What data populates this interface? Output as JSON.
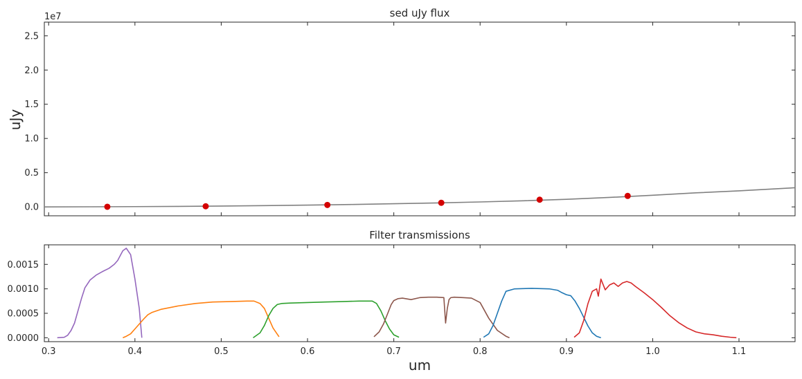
{
  "chart_data": [
    {
      "type": "line",
      "title": "sed uJy flux",
      "xlabel": "",
      "ylabel": "uJy",
      "offset_text": "1e7",
      "xlim": [
        0.295,
        1.165
      ],
      "ylim": [
        -1300000,
        27000000
      ],
      "x_ticks": [
        0.3,
        0.4,
        0.5,
        0.6,
        0.7,
        0.8,
        0.9,
        1.0,
        1.1
      ],
      "y_ticks": [
        0,
        5000000,
        10000000,
        15000000,
        20000000,
        25000000
      ],
      "y_tick_labels": [
        "0.0",
        "0.5",
        "1.0",
        "1.5",
        "2.0",
        "2.5"
      ],
      "grid": false,
      "colors": {
        "sed_line": "#808080",
        "points": "#d40000"
      },
      "sed_line": {
        "x": [
          0.295,
          0.35,
          0.4,
          0.45,
          0.5,
          0.55,
          0.6,
          0.65,
          0.7,
          0.75,
          0.8,
          0.85,
          0.9,
          0.95,
          1.0,
          1.05,
          1.1,
          1.165
        ],
        "y": [
          0,
          15000,
          40000,
          70000,
          120000,
          180000,
          260000,
          350000,
          460000,
          580000,
          720000,
          890000,
          1110000,
          1380000,
          1700000,
          2050000,
          2350000,
          2800000
        ]
      },
      "points": {
        "x": [
          0.368,
          0.482,
          0.623,
          0.755,
          0.869,
          0.971
        ],
        "y": [
          20000,
          90000,
          280000,
          600000,
          1050000,
          1600000
        ]
      }
    },
    {
      "type": "line",
      "title": "Filter transmissions",
      "xlabel": "um",
      "ylabel": "",
      "xlim": [
        0.295,
        1.165
      ],
      "ylim": [
        -8e-05,
        0.0019
      ],
      "x_ticks": [
        0.3,
        0.4,
        0.5,
        0.6,
        0.7,
        0.8,
        0.9,
        1.0,
        1.1
      ],
      "x_tick_labels": [
        "0.3",
        "0.4",
        "0.5",
        "0.6",
        "0.7",
        "0.8",
        "0.9",
        "1.0",
        "1.1"
      ],
      "y_ticks": [
        0,
        0.0005,
        0.001,
        0.0015
      ],
      "y_tick_labels": [
        "0.0000",
        "0.0005",
        "0.0010",
        "0.0015"
      ],
      "grid": false,
      "series": [
        {
          "color": "#9467bd",
          "x": [
            0.31,
            0.318,
            0.322,
            0.326,
            0.33,
            0.334,
            0.338,
            0.342,
            0.348,
            0.355,
            0.362,
            0.37,
            0.376,
            0.38,
            0.383,
            0.386,
            0.39,
            0.395,
            0.4,
            0.405,
            0.408
          ],
          "y": [
            0,
            1e-05,
            5e-05,
            0.00015,
            0.0003,
            0.00055,
            0.0008,
            0.00102,
            0.00118,
            0.00128,
            0.00135,
            0.00142,
            0.0015,
            0.00158,
            0.00168,
            0.00178,
            0.00183,
            0.0017,
            0.0012,
            0.0006,
            0.0
          ]
        },
        {
          "color": "#ff7f0e",
          "x": [
            0.386,
            0.39,
            0.395,
            0.4,
            0.41,
            0.415,
            0.42,
            0.43,
            0.45,
            0.47,
            0.49,
            0.51,
            0.53,
            0.538,
            0.545,
            0.55,
            0.555,
            0.56,
            0.567
          ],
          "y": [
            0,
            3e-05,
            8e-05,
            0.00018,
            0.00038,
            0.00047,
            0.00052,
            0.00058,
            0.00065,
            0.0007,
            0.00073,
            0.00074,
            0.00075,
            0.00075,
            0.0007,
            0.0006,
            0.0004,
            0.0002,
            2e-05
          ]
        },
        {
          "color": "#2ca02c",
          "x": [
            0.537,
            0.545,
            0.55,
            0.555,
            0.56,
            0.565,
            0.57,
            0.58,
            0.6,
            0.62,
            0.64,
            0.66,
            0.675,
            0.68,
            0.685,
            0.69,
            0.695,
            0.7,
            0.706
          ],
          "y": [
            0,
            0.0001,
            0.00025,
            0.00045,
            0.0006,
            0.00068,
            0.0007,
            0.00071,
            0.00072,
            0.00073,
            0.00074,
            0.00075,
            0.00075,
            0.0007,
            0.00055,
            0.00035,
            0.00018,
            6e-05,
            1e-05
          ]
        },
        {
          "color": "#8c564b",
          "x": [
            0.677,
            0.683,
            0.688,
            0.693,
            0.697,
            0.7,
            0.705,
            0.71,
            0.72,
            0.73,
            0.74,
            0.75,
            0.758,
            0.76,
            0.762,
            0.764,
            0.766,
            0.77,
            0.78,
            0.79,
            0.8,
            0.81,
            0.82,
            0.83,
            0.834
          ],
          "y": [
            2e-05,
            0.00012,
            0.00028,
            0.0005,
            0.00068,
            0.00076,
            0.0008,
            0.00081,
            0.00078,
            0.00082,
            0.00083,
            0.00083,
            0.00082,
            0.0003,
            0.0006,
            0.00078,
            0.00082,
            0.00083,
            0.00082,
            0.00081,
            0.00072,
            0.0004,
            0.00015,
            3e-05,
            0
          ]
        },
        {
          "color": "#1f77b4",
          "x": [
            0.804,
            0.81,
            0.815,
            0.82,
            0.825,
            0.83,
            0.84,
            0.86,
            0.88,
            0.89,
            0.895,
            0.9,
            0.905,
            0.91,
            0.915,
            0.92,
            0.925,
            0.93,
            0.935,
            0.94
          ],
          "y": [
            1e-05,
            8e-05,
            0.00025,
            0.0005,
            0.00075,
            0.00095,
            0.001,
            0.00101,
            0.001,
            0.00097,
            0.00092,
            0.00088,
            0.00086,
            0.00075,
            0.0006,
            0.00042,
            0.00024,
            0.0001,
            3e-05,
            0
          ]
        },
        {
          "color": "#d62728",
          "x": [
            0.909,
            0.915,
            0.92,
            0.925,
            0.93,
            0.935,
            0.937,
            0.94,
            0.945,
            0.95,
            0.955,
            0.96,
            0.965,
            0.97,
            0.975,
            0.98,
            0.99,
            1.0,
            1.01,
            1.02,
            1.03,
            1.04,
            1.05,
            1.06,
            1.07,
            1.08,
            1.09,
            1.097
          ],
          "y": [
            1e-05,
            0.0001,
            0.00035,
            0.0007,
            0.00095,
            0.001,
            0.00085,
            0.0012,
            0.00098,
            0.00108,
            0.00112,
            0.00105,
            0.00112,
            0.00115,
            0.00112,
            0.00105,
            0.00092,
            0.00078,
            0.00062,
            0.00045,
            0.00031,
            0.0002,
            0.00012,
            8e-05,
            6e-05,
            3e-05,
            1e-05,
            0
          ]
        }
      ]
    }
  ]
}
